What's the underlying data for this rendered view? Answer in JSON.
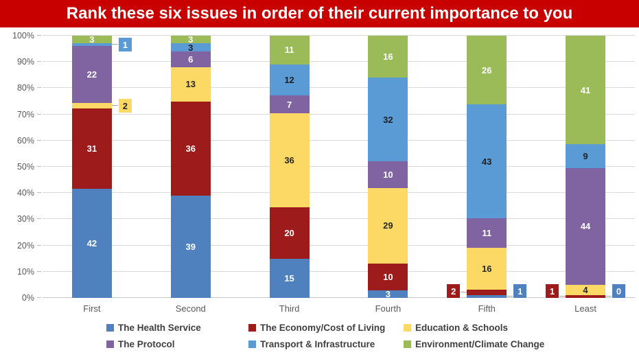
{
  "title": "Rank these six issues in order of their current importance to you",
  "banner_color": "#c80000",
  "chart_data": {
    "type": "bar",
    "variant": "100%-stacked-column",
    "title": "Rank these six issues in order of their current importance to you",
    "categories": [
      "First",
      "Second",
      "Third",
      "Fourth",
      "Fifth",
      "Least"
    ],
    "series": [
      {
        "name": "The Health Service",
        "color": "#4e81bd",
        "label_color": "#ffffff",
        "callout_text_color": "#ffffff",
        "values": [
          42,
          39,
          15,
          3,
          1,
          0
        ]
      },
      {
        "name": "The Economy/Cost of Living",
        "color": "#9e1b1b",
        "label_color": "#ffffff",
        "callout_text_color": "#ffffff",
        "values": [
          31,
          36,
          20,
          10,
          2,
          1
        ]
      },
      {
        "name": "Education & Schools",
        "color": "#fbd964",
        "label_color": "#262626",
        "callout_text_color": "#262626",
        "values": [
          2,
          13,
          36,
          29,
          16,
          4
        ]
      },
      {
        "name": "The Protocol",
        "color": "#8064a2",
        "label_color": "#ffffff",
        "callout_text_color": "#ffffff",
        "values": [
          22,
          6,
          7,
          10,
          11,
          44
        ]
      },
      {
        "name": "Transport & Infrastructure",
        "color": "#5b9bd5",
        "label_color": "#1f1f1f",
        "callout_text_color": "#ffffff",
        "values": [
          1,
          3,
          12,
          32,
          43,
          9
        ]
      },
      {
        "name": "Environment/Climate Change",
        "color": "#9bbb59",
        "label_color": "#ffffff",
        "callout_text_color": "#ffffff",
        "values": [
          3,
          3,
          11,
          16,
          26,
          41
        ]
      }
    ],
    "y_ticks": [
      "0%",
      "10%",
      "20%",
      "30%",
      "40%",
      "50%",
      "60%",
      "70%",
      "80%",
      "90%",
      "100%"
    ],
    "ylim": [
      0,
      100
    ],
    "xlabel": "",
    "ylabel": "",
    "grid": true,
    "legend_position": "bottom",
    "callouts": [
      {
        "category": "First",
        "series": "Education & Schools",
        "side": "right"
      },
      {
        "category": "First",
        "series": "Transport & Infrastructure",
        "side": "right"
      },
      {
        "category": "Fifth",
        "series": "The Economy/Cost of Living",
        "side": "left"
      },
      {
        "category": "Fifth",
        "series": "The Health Service",
        "side": "right"
      },
      {
        "category": "Least",
        "series": "The Economy/Cost of Living",
        "side": "left"
      },
      {
        "category": "Least",
        "series": "The Health Service",
        "side": "right"
      }
    ]
  }
}
